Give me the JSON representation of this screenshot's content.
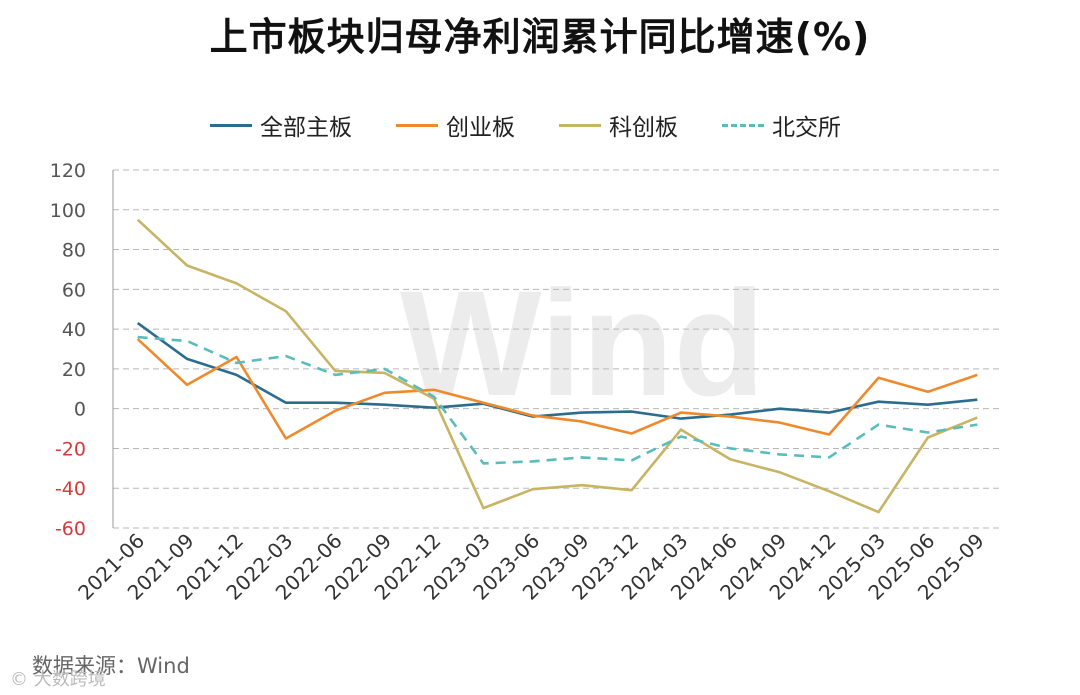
{
  "title": "上市板块归母净利润累计同比增速(%)",
  "source": "数据来源：Wind",
  "watermark": "Wind",
  "badge": "© 大数跨境",
  "chart_data": {
    "type": "line",
    "title": "上市板块归母净利润累计同比增速(%)",
    "categories": [
      "2021-06",
      "2021-09",
      "2021-12",
      "2022-03",
      "2022-06",
      "2022-09",
      "2022-12",
      "2023-03",
      "2023-06",
      "2023-09",
      "2023-12",
      "2024-03",
      "2024-06",
      "2024-09",
      "2024-12",
      "2025-03",
      "2025-06",
      "2025-09"
    ],
    "ylim": [
      -60,
      120
    ],
    "yticks": [
      120,
      100,
      80,
      60,
      40,
      20,
      0,
      -20,
      -40,
      -60
    ],
    "negative_tick_color": "#d33a3a",
    "grid": true,
    "legend_position": "top",
    "series": [
      {
        "name": "全部主板",
        "color": "#2b6d8e",
        "dash": false,
        "values": [
          43,
          25,
          17,
          3,
          3,
          2,
          0.5,
          2.5,
          -4,
          -2,
          -1.5,
          -5,
          -3,
          0,
          -2,
          3.5,
          2,
          4.5
        ]
      },
      {
        "name": "创业板",
        "color": "#ee8a2c",
        "dash": false,
        "values": [
          35,
          12,
          26,
          -15,
          -1,
          8,
          9.5,
          3,
          -3.5,
          -6.5,
          -12.5,
          -2,
          -4,
          -7,
          -13,
          15.5,
          8.5,
          17
        ]
      },
      {
        "name": "科创板",
        "color": "#c7b464",
        "dash": false,
        "values": [
          95,
          72,
          63,
          49,
          19,
          18,
          5,
          -50,
          -40.5,
          -38.5,
          -41,
          -10.5,
          -25.5,
          -32,
          -41.5,
          -52,
          -14.5,
          -4.5
        ]
      },
      {
        "name": "北交所",
        "color": "#5bbcbc",
        "dash": true,
        "values": [
          36,
          34,
          23,
          26.5,
          17,
          20,
          6,
          -27.5,
          -26.5,
          -24.5,
          -26,
          -14,
          -20,
          -23,
          -24.5,
          -8,
          -12,
          -8
        ]
      }
    ]
  }
}
